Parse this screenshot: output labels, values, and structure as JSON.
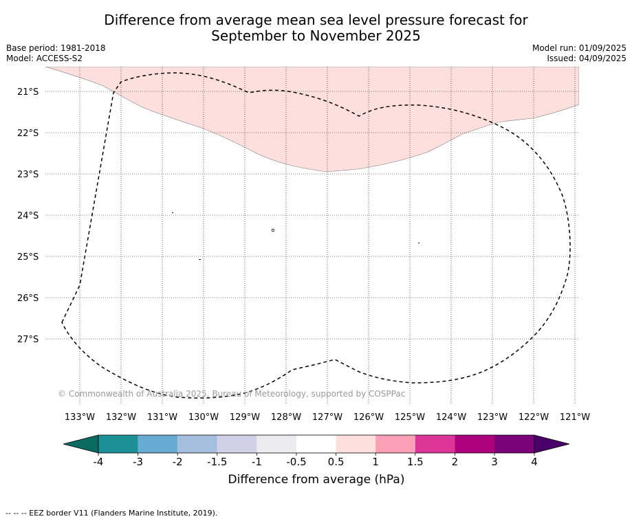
{
  "title": {
    "line1": "Difference from average mean sea level pressure forecast for",
    "line2": "September to November 2025"
  },
  "meta_left": {
    "base_period": "Base period: 1981-2018",
    "model": "Model: ACCESS-S2"
  },
  "meta_right": {
    "model_run": "Model run: 01/09/2025",
    "issued": "Issued: 04/09/2025"
  },
  "map": {
    "lat_labels": [
      "21°S",
      "22°S",
      "23°S",
      "24°S",
      "25°S",
      "26°S",
      "27°S"
    ],
    "lon_labels": [
      "133°W",
      "132°W",
      "131°W",
      "130°W",
      "129°W",
      "128°W",
      "127°W",
      "126°W",
      "125°W",
      "124°W",
      "123°W",
      "122°W",
      "121°W"
    ],
    "copyright": "© Commonwealth of Australia 2025, Bureau of Meteorology, supported by COSPPac",
    "anomaly_fill_color": "#fde0dd",
    "eez_border_style": "dashed"
  },
  "colorbar": {
    "ticks": [
      "-4",
      "-3",
      "-2",
      "-1.5",
      "-1",
      "-0.5",
      "0.5",
      "1",
      "1.5",
      "2",
      "3",
      "4"
    ],
    "colors": [
      "#0b6b63",
      "#1d8f96",
      "#67aad2",
      "#a6bedd",
      "#d0d1e6",
      "#ececf0",
      "#ffffff",
      "#fde0dd",
      "#fa9fb5",
      "#dd3497",
      "#ae017e",
      "#7a0177",
      "#49006a"
    ],
    "label": "Difference from average (hPa)"
  },
  "footer": {
    "legend": "--  --  -- EEZ border V11 (Flanders Marine Institute, 2019)."
  }
}
